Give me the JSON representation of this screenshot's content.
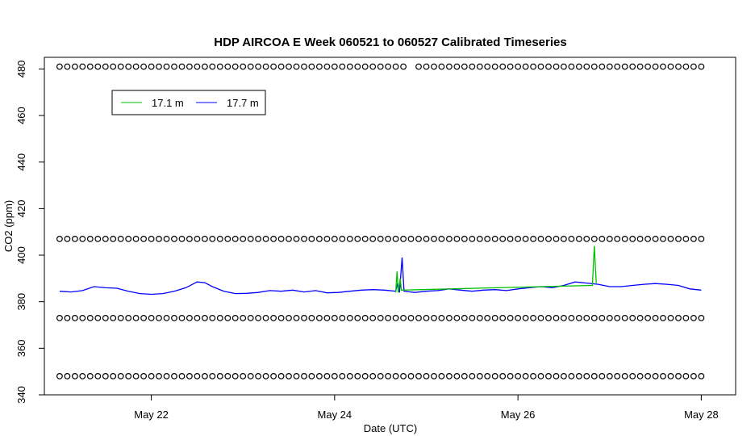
{
  "chart_data": {
    "type": "line",
    "title": "HDP AIRCOA E  Week 060521 to 060527  Calibrated Timeseries",
    "xlabel": "Date (UTC)",
    "ylabel": "CO2 (ppm)",
    "xlim": [
      "2006-05-20T20:00",
      "2006-05-28T09:00"
    ],
    "ylim": [
      340,
      485
    ],
    "x_ticks": [
      {
        "x": "2006-05-22",
        "label": "May 22"
      },
      {
        "x": "2006-05-24",
        "label": "May 24"
      },
      {
        "x": "2006-05-26",
        "label": "May 26"
      },
      {
        "x": "2006-05-28",
        "label": "May 28"
      }
    ],
    "y_ticks": [
      340,
      360,
      380,
      400,
      420,
      440,
      460,
      480
    ],
    "grid": false,
    "legend_position": "top-left",
    "series": [
      {
        "name": "17.1 m",
        "color": "#00c000",
        "style": "line",
        "points": [
          [
            "2006-05-24T16:00",
            384
          ],
          [
            "2006-05-24T16:20",
            393
          ],
          [
            "2006-05-24T16:40",
            384
          ],
          [
            "2006-05-24T17:10",
            390
          ],
          [
            "2006-05-24T17:30",
            385
          ],
          [
            "2006-05-26T19:30",
            387
          ],
          [
            "2006-05-26T20:00",
            404
          ],
          [
            "2006-05-26T20:30",
            388
          ]
        ]
      },
      {
        "name": "17.7 m",
        "color": "#0000ff",
        "style": "line",
        "points": [
          [
            "2006-05-21T00:00",
            384.5
          ],
          [
            "2006-05-21T03:00",
            384.2
          ],
          [
            "2006-05-21T06:00",
            384.8
          ],
          [
            "2006-05-21T09:00",
            386.5
          ],
          [
            "2006-05-21T12:00",
            386.0
          ],
          [
            "2006-05-21T15:00",
            385.8
          ],
          [
            "2006-05-21T18:00",
            384.5
          ],
          [
            "2006-05-21T21:00",
            383.5
          ],
          [
            "2006-05-22T00:00",
            383.2
          ],
          [
            "2006-05-22T03:00",
            383.5
          ],
          [
            "2006-05-22T06:00",
            384.5
          ],
          [
            "2006-05-22T09:00",
            386.0
          ],
          [
            "2006-05-22T12:00",
            388.5
          ],
          [
            "2006-05-22T14:00",
            388.2
          ],
          [
            "2006-05-22T16:00",
            386.5
          ],
          [
            "2006-05-22T19:00",
            384.5
          ],
          [
            "2006-05-22T22:00",
            383.5
          ],
          [
            "2006-05-23T01:00",
            383.6
          ],
          [
            "2006-05-23T04:00",
            384.0
          ],
          [
            "2006-05-23T07:00",
            384.8
          ],
          [
            "2006-05-23T10:00",
            384.5
          ],
          [
            "2006-05-23T13:00",
            385.0
          ],
          [
            "2006-05-23T16:00",
            384.2
          ],
          [
            "2006-05-23T19:00",
            384.8
          ],
          [
            "2006-05-23T22:00",
            383.8
          ],
          [
            "2006-05-24T01:00",
            384.0
          ],
          [
            "2006-05-24T04:00",
            384.5
          ],
          [
            "2006-05-24T07:00",
            385.0
          ],
          [
            "2006-05-24T10:00",
            385.2
          ],
          [
            "2006-05-24T13:00",
            385.0
          ],
          [
            "2006-05-24T16:00",
            384.5
          ],
          [
            "2006-05-24T16:30",
            388.0
          ],
          [
            "2006-05-24T17:00",
            384.0
          ],
          [
            "2006-05-24T17:40",
            399.0
          ],
          [
            "2006-05-24T18:10",
            384.5
          ],
          [
            "2006-05-24T21:00",
            384.0
          ],
          [
            "2006-05-25T00:00",
            384.5
          ],
          [
            "2006-05-25T03:00",
            384.8
          ],
          [
            "2006-05-25T06:00",
            385.5
          ],
          [
            "2006-05-25T09:00",
            385.0
          ],
          [
            "2006-05-25T12:00",
            384.5
          ],
          [
            "2006-05-25T15:00",
            385.0
          ],
          [
            "2006-05-25T18:00",
            385.2
          ],
          [
            "2006-05-25T21:00",
            384.8
          ],
          [
            "2006-05-26T00:00",
            385.5
          ],
          [
            "2006-05-26T03:00",
            386.0
          ],
          [
            "2006-05-26T06:00",
            386.5
          ],
          [
            "2006-05-26T09:00",
            386.0
          ],
          [
            "2006-05-26T12:00",
            387.0
          ],
          [
            "2006-05-26T15:00",
            388.5
          ],
          [
            "2006-05-26T18:00",
            388.0
          ],
          [
            "2006-05-26T21:00",
            387.5
          ],
          [
            "2006-05-27T00:00",
            386.5
          ],
          [
            "2006-05-27T03:00",
            386.5
          ],
          [
            "2006-05-27T06:00",
            387.0
          ],
          [
            "2006-05-27T09:00",
            387.5
          ],
          [
            "2006-05-27T12:00",
            387.8
          ],
          [
            "2006-05-27T15:00",
            387.5
          ],
          [
            "2006-05-27T18:00",
            387.0
          ],
          [
            "2006-05-27T21:00",
            385.5
          ],
          [
            "2006-05-28T00:00",
            385.0
          ]
        ]
      }
    ],
    "marker_rows": [
      {
        "y": 481,
        "x_start": "2006-05-21T00:00",
        "x_end": "2006-05-28T00:00",
        "count": 85,
        "gap": [
          "2006-05-24T18:00",
          "2006-05-24T21:00"
        ]
      },
      {
        "y": 407,
        "x_start": "2006-05-21T00:00",
        "x_end": "2006-05-28T00:00",
        "count": 85,
        "gap": null
      },
      {
        "y": 373,
        "x_start": "2006-05-21T00:00",
        "x_end": "2006-05-28T00:00",
        "count": 85,
        "gap": null
      },
      {
        "y": 348,
        "x_start": "2006-05-21T00:00",
        "x_end": "2006-05-28T00:00",
        "count": 85,
        "gap": null
      }
    ]
  }
}
